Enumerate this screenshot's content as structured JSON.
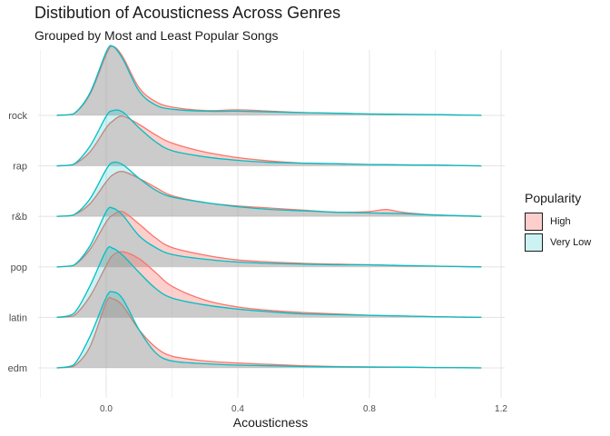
{
  "chart_data": {
    "type": "ridgeline-density",
    "title": "Distibution of Acousticness Across Genres",
    "subtitle": "Grouped by Most and Least Popular Songs",
    "xlabel": "Acousticness",
    "ylabel": "",
    "xlim": [
      -0.2,
      1.25
    ],
    "x_ticks": [
      0.0,
      0.4,
      0.8,
      1.2
    ],
    "x_tick_labels": [
      "0.0",
      "0.4",
      "0.8",
      "1.2"
    ],
    "density_range": [
      -0.15,
      1.14
    ],
    "categories": [
      "rock",
      "rap",
      "r&b",
      "pop",
      "latin",
      "edm"
    ],
    "grid": true,
    "legend": {
      "title": "Popularity",
      "position": "right",
      "items": [
        {
          "label": "High",
          "fill": "#F8766D",
          "fill_alpha": 0.35,
          "line": "#F8766D"
        },
        {
          "label": "Very Low",
          "fill": "#00BFC4",
          "fill_alpha": 0.2,
          "line": "#00BFC4"
        }
      ]
    },
    "series": [
      {
        "name": "High",
        "color": "#F8766D",
        "densities": {
          "rock": {
            "x": [
              -0.15,
              -0.1,
              -0.05,
              0.0,
              0.02,
              0.05,
              0.1,
              0.15,
              0.2,
              0.3,
              0.4,
              0.5,
              0.6,
              0.7,
              0.8,
              0.9,
              1.0,
              1.14
            ],
            "y": [
              0.0,
              0.02,
              0.3,
              0.88,
              1.0,
              0.85,
              0.4,
              0.2,
              0.12,
              0.07,
              0.08,
              0.06,
              0.04,
              0.03,
              0.02,
              0.015,
              0.01,
              0.0
            ]
          },
          "rap": {
            "x": [
              -0.15,
              -0.1,
              -0.05,
              0.0,
              0.02,
              0.05,
              0.1,
              0.15,
              0.2,
              0.3,
              0.4,
              0.5,
              0.6,
              0.7,
              0.8,
              0.9,
              1.0,
              1.14
            ],
            "y": [
              0.0,
              0.02,
              0.2,
              0.55,
              0.65,
              0.72,
              0.6,
              0.45,
              0.33,
              0.2,
              0.12,
              0.07,
              0.04,
              0.03,
              0.02,
              0.015,
              0.01,
              0.0
            ]
          },
          "r&b": {
            "x": [
              -0.15,
              -0.1,
              -0.05,
              0.0,
              0.02,
              0.05,
              0.1,
              0.15,
              0.2,
              0.3,
              0.4,
              0.5,
              0.6,
              0.7,
              0.8,
              0.85,
              0.9,
              1.0,
              1.14
            ],
            "y": [
              0.0,
              0.02,
              0.18,
              0.5,
              0.6,
              0.65,
              0.55,
              0.42,
              0.3,
              0.2,
              0.15,
              0.12,
              0.09,
              0.06,
              0.07,
              0.1,
              0.06,
              0.02,
              0.0
            ]
          },
          "pop": {
            "x": [
              -0.15,
              -0.1,
              -0.05,
              0.0,
              0.02,
              0.05,
              0.1,
              0.15,
              0.2,
              0.3,
              0.4,
              0.5,
              0.6,
              0.7,
              0.8,
              0.9,
              1.0,
              1.14
            ],
            "y": [
              0.0,
              0.02,
              0.25,
              0.65,
              0.75,
              0.8,
              0.62,
              0.42,
              0.28,
              0.17,
              0.1,
              0.07,
              0.05,
              0.04,
              0.03,
              0.015,
              0.01,
              0.0
            ]
          },
          "latin": {
            "x": [
              -0.15,
              -0.1,
              -0.05,
              0.0,
              0.02,
              0.05,
              0.1,
              0.15,
              0.2,
              0.3,
              0.4,
              0.5,
              0.6,
              0.7,
              0.8,
              0.9,
              1.0,
              1.14
            ],
            "y": [
              0.0,
              0.02,
              0.3,
              0.75,
              0.9,
              0.95,
              0.85,
              0.65,
              0.45,
              0.25,
              0.15,
              0.1,
              0.07,
              0.05,
              0.03,
              0.02,
              0.01,
              0.0
            ]
          },
          "edm": {
            "x": [
              -0.15,
              -0.1,
              -0.05,
              0.0,
              0.02,
              0.05,
              0.1,
              0.15,
              0.2,
              0.3,
              0.4,
              0.5,
              0.6,
              0.7,
              0.8,
              0.9,
              1.0,
              1.14
            ],
            "y": [
              0.0,
              0.02,
              0.3,
              0.95,
              1.0,
              0.9,
              0.55,
              0.3,
              0.17,
              0.1,
              0.07,
              0.05,
              0.03,
              0.02,
              0.015,
              0.01,
              0.005,
              0.0
            ]
          }
        }
      },
      {
        "name": "Very Low",
        "color": "#00BFC4",
        "densities": {
          "rock": {
            "x": [
              -0.15,
              -0.1,
              -0.05,
              0.0,
              0.02,
              0.05,
              0.1,
              0.15,
              0.2,
              0.3,
              0.4,
              0.5,
              0.6,
              0.7,
              0.8,
              0.9,
              1.0,
              1.14
            ],
            "y": [
              0.0,
              0.02,
              0.32,
              0.92,
              1.0,
              0.82,
              0.35,
              0.15,
              0.09,
              0.06,
              0.06,
              0.05,
              0.04,
              0.03,
              0.02,
              0.015,
              0.01,
              0.0
            ]
          },
          "rap": {
            "x": [
              -0.15,
              -0.1,
              -0.05,
              0.0,
              0.02,
              0.05,
              0.1,
              0.15,
              0.2,
              0.3,
              0.4,
              0.5,
              0.6,
              0.7,
              0.8,
              0.9,
              1.0,
              1.14
            ],
            "y": [
              0.0,
              0.02,
              0.28,
              0.72,
              0.8,
              0.78,
              0.55,
              0.35,
              0.22,
              0.13,
              0.08,
              0.05,
              0.04,
              0.03,
              0.02,
              0.015,
              0.01,
              0.0
            ]
          },
          "r&b": {
            "x": [
              -0.15,
              -0.1,
              -0.05,
              0.0,
              0.02,
              0.05,
              0.1,
              0.15,
              0.2,
              0.3,
              0.4,
              0.5,
              0.6,
              0.7,
              0.8,
              0.9,
              1.0,
              1.14
            ],
            "y": [
              0.0,
              0.02,
              0.25,
              0.68,
              0.78,
              0.75,
              0.55,
              0.38,
              0.28,
              0.2,
              0.14,
              0.1,
              0.08,
              0.06,
              0.05,
              0.04,
              0.02,
              0.0
            ]
          },
          "pop": {
            "x": [
              -0.15,
              -0.1,
              -0.05,
              0.0,
              0.02,
              0.05,
              0.1,
              0.15,
              0.2,
              0.3,
              0.4,
              0.5,
              0.6,
              0.7,
              0.8,
              0.9,
              1.0,
              1.14
            ],
            "y": [
              0.0,
              0.02,
              0.3,
              0.8,
              0.85,
              0.75,
              0.45,
              0.28,
              0.18,
              0.11,
              0.07,
              0.05,
              0.04,
              0.03,
              0.03,
              0.02,
              0.01,
              0.0
            ]
          },
          "latin": {
            "x": [
              -0.15,
              -0.1,
              -0.05,
              0.0,
              0.02,
              0.05,
              0.1,
              0.15,
              0.2,
              0.3,
              0.4,
              0.5,
              0.6,
              0.7,
              0.8,
              0.9,
              1.0,
              1.14
            ],
            "y": [
              0.0,
              0.05,
              0.45,
              0.97,
              1.0,
              0.9,
              0.65,
              0.42,
              0.28,
              0.18,
              0.12,
              0.08,
              0.05,
              0.04,
              0.03,
              0.02,
              0.01,
              0.0
            ]
          },
          "edm": {
            "x": [
              -0.15,
              -0.1,
              -0.05,
              0.0,
              0.02,
              0.05,
              0.1,
              0.15,
              0.2,
              0.3,
              0.4,
              0.5,
              0.6,
              0.7,
              0.8,
              0.9,
              1.0,
              1.14
            ],
            "y": [
              0.0,
              0.04,
              0.45,
              1.02,
              1.1,
              1.0,
              0.55,
              0.22,
              0.1,
              0.06,
              0.04,
              0.03,
              0.02,
              0.015,
              0.01,
              0.01,
              0.005,
              0.0
            ]
          }
        }
      }
    ]
  }
}
